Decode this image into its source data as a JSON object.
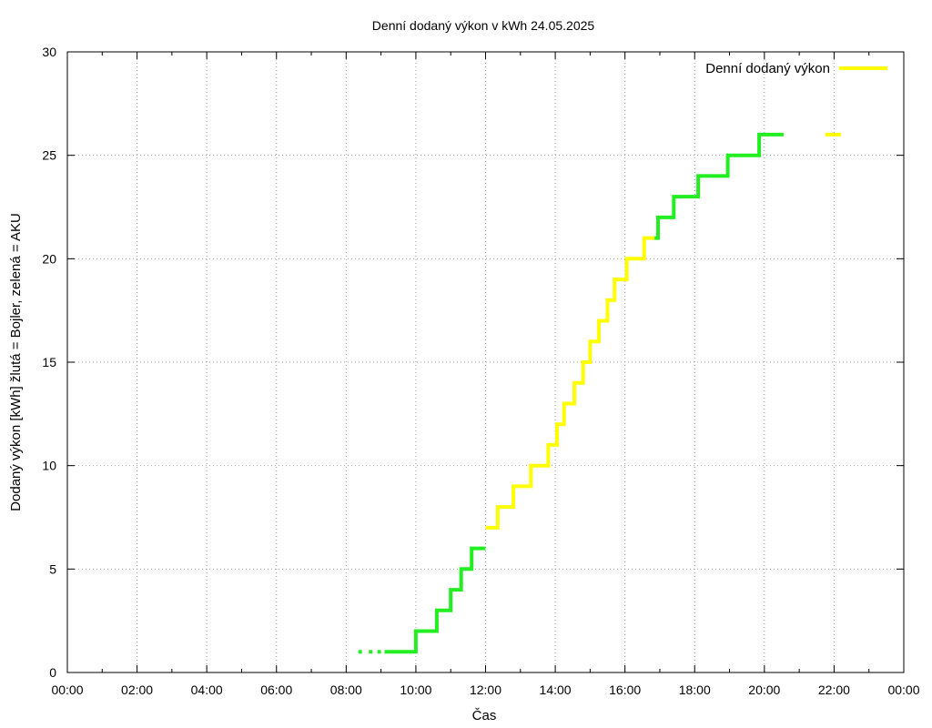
{
  "chart_data": {
    "type": "line",
    "title": "Denní dodaný výkon v kWh 24.05.2025",
    "xlabel": "Čas",
    "ylabel": "Dodaný výkon [kWh]  žlutá = Bojler, zelená = AKU",
    "xlim": [
      0,
      24
    ],
    "ylim": [
      0,
      30
    ],
    "x_ticks": [
      "00:00",
      "02:00",
      "04:00",
      "06:00",
      "08:00",
      "10:00",
      "12:00",
      "14:00",
      "16:00",
      "18:00",
      "20:00",
      "22:00",
      "00:00"
    ],
    "y_ticks": [
      "0",
      "5",
      "10",
      "15",
      "20",
      "25",
      "30"
    ],
    "grid": true,
    "legend": {
      "label": "Denní dodaný výkon",
      "position": "top-right",
      "color": "#ffff00"
    },
    "colors": {
      "bojler": "#ffff00",
      "aku": "#22ee22",
      "grid": "#a0a0a0"
    },
    "segments": [
      {
        "color": "aku",
        "points": [
          [
            8.35,
            1
          ],
          [
            8.45,
            1
          ]
        ]
      },
      {
        "color": "aku",
        "points": [
          [
            8.65,
            1
          ],
          [
            8.75,
            1
          ]
        ]
      },
      {
        "color": "aku",
        "points": [
          [
            8.9,
            1
          ],
          [
            9.0,
            1
          ]
        ]
      },
      {
        "color": "aku",
        "points": [
          [
            9.1,
            1
          ],
          [
            10.0,
            1
          ],
          [
            10.0,
            2
          ],
          [
            10.6,
            2
          ],
          [
            10.6,
            3
          ],
          [
            11.0,
            3
          ],
          [
            11.0,
            4
          ],
          [
            11.3,
            4
          ],
          [
            11.3,
            5
          ],
          [
            11.6,
            5
          ],
          [
            11.6,
            6
          ],
          [
            12.0,
            6
          ]
        ]
      },
      {
        "color": "bojler",
        "points": [
          [
            12.0,
            7
          ],
          [
            12.35,
            7
          ],
          [
            12.35,
            8
          ],
          [
            12.8,
            8
          ],
          [
            12.8,
            9
          ],
          [
            13.3,
            9
          ],
          [
            13.3,
            10
          ],
          [
            13.8,
            10
          ],
          [
            13.8,
            11
          ],
          [
            14.05,
            11
          ],
          [
            14.05,
            12
          ],
          [
            14.25,
            12
          ],
          [
            14.25,
            13
          ],
          [
            14.55,
            13
          ],
          [
            14.55,
            14
          ],
          [
            14.8,
            14
          ],
          [
            14.8,
            15
          ],
          [
            15.0,
            15
          ],
          [
            15.0,
            16
          ],
          [
            15.25,
            16
          ],
          [
            15.25,
            17
          ],
          [
            15.5,
            17
          ],
          [
            15.5,
            18
          ],
          [
            15.7,
            18
          ],
          [
            15.7,
            19
          ],
          [
            16.05,
            19
          ],
          [
            16.05,
            20
          ],
          [
            16.55,
            20
          ],
          [
            16.55,
            21
          ],
          [
            16.85,
            21
          ]
        ]
      },
      {
        "color": "aku",
        "points": [
          [
            16.85,
            21
          ],
          [
            16.95,
            21
          ],
          [
            16.95,
            22
          ],
          [
            17.4,
            22
          ],
          [
            17.4,
            23
          ],
          [
            18.1,
            23
          ],
          [
            18.1,
            24
          ],
          [
            18.95,
            24
          ],
          [
            18.95,
            25
          ],
          [
            19.85,
            25
          ],
          [
            19.85,
            26
          ],
          [
            20.55,
            26
          ]
        ]
      },
      {
        "color": "bojler",
        "points": [
          [
            21.75,
            26
          ],
          [
            22.2,
            26
          ]
        ]
      }
    ]
  }
}
